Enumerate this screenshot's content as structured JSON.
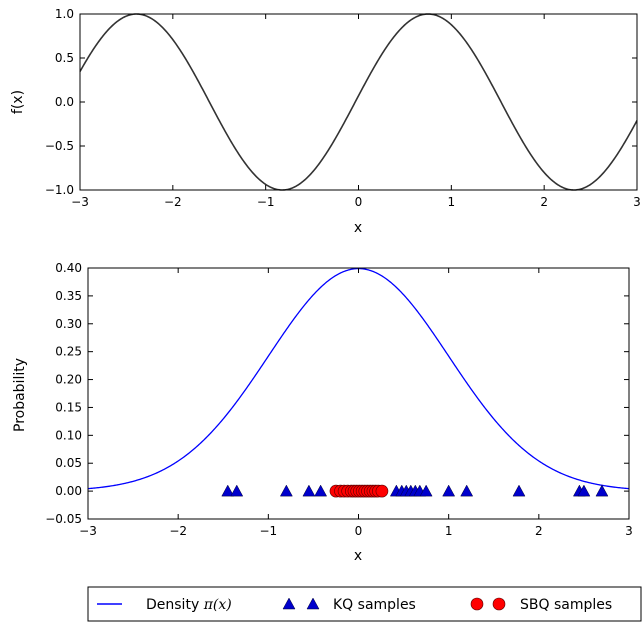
{
  "chart_data": [
    {
      "type": "line",
      "xlabel": "x",
      "ylabel": "f(x)",
      "xlim": [
        -3,
        3
      ],
      "ylim": [
        -1.0,
        1.0
      ],
      "xticks": [
        "−3",
        "−2",
        "−1",
        "0",
        "1",
        "2",
        "3"
      ],
      "yticks": [
        "1.0",
        "0.5",
        "0.0",
        "−0.5",
        "−1.0"
      ],
      "series": [
        {
          "function": "cos(2x - 1.5)",
          "color": "#333333",
          "peaks_x": [
            -2.39,
            0.75
          ],
          "troughs_x": [
            -0.82,
            2.32
          ]
        }
      ],
      "grid": false
    },
    {
      "type": "line",
      "xlabel": "x",
      "ylabel": "Probability",
      "xlim": [
        -3,
        3
      ],
      "ylim": [
        -0.05,
        0.4
      ],
      "xticks": [
        "−3",
        "−2",
        "−1",
        "0",
        "1",
        "2",
        "3"
      ],
      "yticks": [
        "0.40",
        "0.35",
        "0.30",
        "0.25",
        "0.20",
        "0.15",
        "0.10",
        "0.05",
        "0.00",
        "−0.05"
      ],
      "series": [
        {
          "name": "Density",
          "math": "π(x)",
          "kind": "line",
          "function": "standard normal pdf",
          "color": "#0000ff"
        },
        {
          "name": "KQ samples",
          "kind": "scatter",
          "marker": "triangle",
          "color": "#0000cc",
          "x": [
            -1.45,
            -1.35,
            -0.8,
            -0.55,
            -0.42,
            -0.2,
            0.42,
            0.48,
            0.53,
            0.58,
            0.63,
            0.68,
            0.75,
            1.0,
            1.2,
            1.78,
            2.45,
            2.5,
            2.7
          ],
          "y": [
            0,
            0,
            0,
            0,
            0,
            0,
            0,
            0,
            0,
            0,
            0,
            0,
            0,
            0,
            0,
            0,
            0,
            0,
            0
          ]
        },
        {
          "name": "SBQ samples",
          "kind": "scatter",
          "marker": "circle",
          "color": "#ff0000",
          "x": [
            -0.25,
            -0.2,
            -0.16,
            -0.12,
            -0.08,
            -0.05,
            -0.02,
            0.01,
            0.04,
            0.07,
            0.1,
            0.13,
            0.16,
            0.19,
            0.22,
            0.26
          ],
          "y": [
            0,
            0,
            0,
            0,
            0,
            0,
            0,
            0,
            0,
            0,
            0,
            0,
            0,
            0,
            0,
            0
          ]
        }
      ],
      "legend_placement": "bottom",
      "grid": false
    }
  ]
}
